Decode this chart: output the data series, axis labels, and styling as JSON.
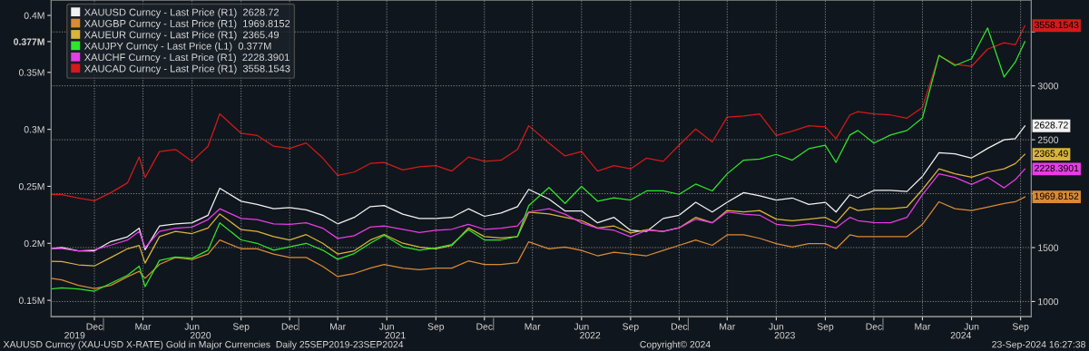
{
  "chart_data": {
    "type": "line",
    "x": [
      "2019-09-25",
      "2019-10-15",
      "2019-11-15",
      "2019-12-15",
      "2020-01-15",
      "2020-02-15",
      "2020-03-08",
      "2020-03-19",
      "2020-04-15",
      "2020-05-15",
      "2020-06-15",
      "2020-07-15",
      "2020-08-06",
      "2020-09-15",
      "2020-10-15",
      "2020-11-15",
      "2020-12-15",
      "2021-01-15",
      "2021-02-15",
      "2021-03-15",
      "2021-04-15",
      "2021-05-15",
      "2021-06-10",
      "2021-07-15",
      "2021-08-15",
      "2021-09-15",
      "2021-10-15",
      "2021-11-15",
      "2021-12-15",
      "2022-01-15",
      "2022-02-15",
      "2022-03-08",
      "2022-04-15",
      "2022-05-15",
      "2022-06-15",
      "2022-07-15",
      "2022-08-15",
      "2022-09-15",
      "2022-10-15",
      "2022-11-15",
      "2022-12-15",
      "2023-01-15",
      "2023-02-15",
      "2023-03-15",
      "2023-04-15",
      "2023-05-15",
      "2023-06-15",
      "2023-07-15",
      "2023-08-15",
      "2023-09-15",
      "2023-10-05",
      "2023-10-31",
      "2023-11-15",
      "2023-12-15",
      "2024-01-15",
      "2024-02-15",
      "2024-03-15",
      "2024-04-15",
      "2024-05-15",
      "2024-06-15",
      "2024-07-15",
      "2024-08-15",
      "2024-09-05",
      "2024-09-23"
    ],
    "series": [
      {
        "name": "XAUUSD Curncy - Last Price (R1)  2628.72",
        "color": "#f2f2f2",
        "axis": "y2",
        "values": [
          1490,
          1500,
          1470,
          1470,
          1556,
          1600,
          1680,
          1480,
          1700,
          1720,
          1730,
          1800,
          2050,
          1930,
          1900,
          1860,
          1870,
          1850,
          1800,
          1720,
          1780,
          1880,
          1890,
          1810,
          1770,
          1770,
          1780,
          1860,
          1790,
          1820,
          1880,
          2040,
          1950,
          1840,
          1840,
          1730,
          1780,
          1660,
          1650,
          1770,
          1800,
          1920,
          1830,
          1920,
          2010,
          1980,
          1940,
          1960,
          1900,
          1920,
          1830,
          1990,
          1960,
          2030,
          2030,
          2020,
          2160,
          2380,
          2370,
          2330,
          2420,
          2500,
          2510,
          2628.72
        ],
        "value_labels": [
          null,
          null,
          null,
          null,
          null,
          null,
          null,
          null,
          null,
          null,
          null,
          null,
          null,
          null,
          null,
          null,
          null,
          null,
          null,
          null,
          null,
          null,
          null,
          null,
          null,
          null,
          null,
          null,
          null,
          null,
          null,
          null,
          null,
          null,
          null,
          null,
          null,
          null,
          null,
          null,
          null,
          null,
          null,
          null,
          null,
          null,
          null,
          null,
          null,
          null,
          null,
          null,
          null,
          null,
          null,
          null,
          null,
          null,
          null,
          null,
          null,
          null,
          null,
          "2628.72"
        ]
      },
      {
        "name": "XAUGBP Curncy - Last Price (R1)  1969.8152",
        "color": "#d98a35",
        "axis": "y2",
        "values": [
          1215,
          1200,
          1150,
          1120,
          1150,
          1230,
          1280,
          1215,
          1344,
          1408,
          1390,
          1440,
          1570,
          1489,
          1489,
          1440,
          1408,
          1408,
          1325,
          1231,
          1260,
          1310,
          1344,
          1310,
          1295,
          1310,
          1310,
          1376,
          1344,
          1344,
          1360,
          1554,
          1489,
          1505,
          1473,
          1424,
          1456,
          1440,
          1424,
          1473,
          1521,
          1570,
          1521,
          1618,
          1618,
          1586,
          1537,
          1505,
          1537,
          1537,
          1489,
          1618,
          1602,
          1602,
          1602,
          1602,
          1716,
          1925,
          1860,
          1844,
          1876,
          1909,
          1925,
          1969.8152
        ],
        "value_labels": [
          null,
          null,
          null,
          null,
          null,
          null,
          null,
          null,
          null,
          null,
          null,
          null,
          null,
          null,
          null,
          null,
          null,
          null,
          null,
          null,
          null,
          null,
          null,
          null,
          null,
          null,
          null,
          null,
          null,
          null,
          null,
          null,
          null,
          null,
          null,
          null,
          null,
          null,
          null,
          null,
          null,
          null,
          null,
          null,
          null,
          null,
          null,
          null,
          null,
          null,
          null,
          null,
          null,
          null,
          null,
          null,
          null,
          null,
          null,
          null,
          null,
          null,
          null,
          "1969.8152"
        ]
      },
      {
        "name": "XAUEUR Curncy - Last Price (R1)  2365.49",
        "color": "#d9b43c",
        "axis": "y2",
        "values": [
          1372,
          1370,
          1340,
          1330,
          1408,
          1489,
          1520,
          1356,
          1602,
          1650,
          1630,
          1682,
          1812,
          1666,
          1650,
          1602,
          1570,
          1620,
          1540,
          1440,
          1470,
          1570,
          1622,
          1540,
          1505,
          1489,
          1520,
          1682,
          1602,
          1590,
          1602,
          1828,
          1812,
          1780,
          1750,
          1682,
          1700,
          1635,
          1666,
          1650,
          1683,
          1780,
          1730,
          1844,
          1830,
          1844,
          1764,
          1748,
          1764,
          1780,
          1730,
          1876,
          1844,
          1860,
          1860,
          1876,
          2038,
          2231,
          2185,
          2153,
          2200,
          2231,
          2279,
          2365.49
        ],
        "value_labels": [
          null,
          null,
          null,
          null,
          null,
          null,
          null,
          null,
          null,
          null,
          null,
          null,
          null,
          null,
          null,
          null,
          null,
          null,
          null,
          null,
          null,
          null,
          null,
          null,
          null,
          null,
          null,
          null,
          null,
          null,
          null,
          null,
          null,
          null,
          null,
          null,
          null,
          null,
          null,
          null,
          null,
          null,
          null,
          null,
          null,
          null,
          null,
          null,
          null,
          null,
          null,
          null,
          null,
          null,
          null,
          null,
          null,
          null,
          null,
          null,
          null,
          null,
          null,
          "2365.49"
        ]
      },
      {
        "name": "XAUJPY Curncy - Last Price (L1)  0.377M",
        "color": "#2ee62e",
        "axis": "y",
        "values": [
          0.16,
          0.161,
          0.16,
          0.158,
          0.165,
          0.172,
          0.18,
          0.162,
          0.185,
          0.188,
          0.187,
          0.194,
          0.218,
          0.203,
          0.2,
          0.194,
          0.197,
          0.2,
          0.194,
          0.186,
          0.191,
          0.2,
          0.207,
          0.197,
          0.194,
          0.196,
          0.199,
          0.212,
          0.203,
          0.203,
          0.206,
          0.233,
          0.249,
          0.235,
          0.25,
          0.237,
          0.24,
          0.238,
          0.246,
          0.246,
          0.243,
          0.252,
          0.246,
          0.261,
          0.273,
          0.274,
          0.278,
          0.273,
          0.283,
          0.286,
          0.271,
          0.295,
          0.299,
          0.288,
          0.295,
          0.299,
          0.31,
          0.365,
          0.356,
          0.362,
          0.389,
          0.346,
          0.359,
          0.377
        ]
      },
      {
        "name": "XAUCHF Curncy - Last Price (R1)  2228.3901",
        "color": "#e83ce8",
        "axis": "y2",
        "values": [
          1490,
          1490,
          1470,
          1480,
          1523,
          1570,
          1650,
          1500,
          1650,
          1680,
          1690,
          1760,
          1860,
          1770,
          1760,
          1720,
          1716,
          1730,
          1680,
          1585,
          1610,
          1690,
          1700,
          1670,
          1640,
          1660,
          1670,
          1716,
          1670,
          1680,
          1700,
          1830,
          1860,
          1810,
          1730,
          1680,
          1660,
          1600,
          1660,
          1650,
          1683,
          1763,
          1730,
          1830,
          1810,
          1800,
          1716,
          1700,
          1720,
          1700,
          1683,
          1780,
          1750,
          1732,
          1730,
          1780,
          1990,
          2185,
          2150,
          2086,
          2153,
          2054,
          2130,
          2228.3901
        ],
        "value_labels": [
          null,
          null,
          null,
          null,
          null,
          null,
          null,
          null,
          null,
          null,
          null,
          null,
          null,
          null,
          null,
          null,
          null,
          null,
          null,
          null,
          null,
          null,
          null,
          null,
          null,
          null,
          null,
          null,
          null,
          null,
          null,
          null,
          null,
          null,
          null,
          null,
          null,
          null,
          null,
          null,
          null,
          null,
          null,
          null,
          null,
          null,
          null,
          null,
          null,
          null,
          null,
          null,
          null,
          null,
          null,
          null,
          null,
          null,
          null,
          null,
          null,
          null,
          null,
          "2228.3901"
        ]
      },
      {
        "name": "XAUCAD Curncy - Last Price (R1)  3558.1543",
        "color": "#d41a1a",
        "axis": "y2",
        "values": [
          1990,
          1990,
          1960,
          1934,
          2010,
          2100,
          2340,
          2150,
          2390,
          2410,
          2300,
          2440,
          2740,
          2560,
          2540,
          2440,
          2420,
          2470,
          2330,
          2170,
          2200,
          2280,
          2290,
          2220,
          2250,
          2260,
          2210,
          2340,
          2300,
          2310,
          2410,
          2630,
          2470,
          2350,
          2390,
          2210,
          2260,
          2230,
          2330,
          2300,
          2450,
          2600,
          2480,
          2710,
          2720,
          2740,
          2540,
          2580,
          2630,
          2620,
          2510,
          2730,
          2760,
          2740,
          2730,
          2700,
          2800,
          3280,
          3200,
          3180,
          3340,
          3400,
          3380,
          3558.1543
        ],
        "value_labels": [
          null,
          null,
          null,
          null,
          null,
          null,
          null,
          null,
          null,
          null,
          null,
          null,
          null,
          null,
          null,
          null,
          null,
          null,
          null,
          null,
          null,
          null,
          null,
          null,
          null,
          null,
          null,
          null,
          null,
          null,
          null,
          null,
          null,
          null,
          null,
          null,
          null,
          null,
          null,
          null,
          null,
          null,
          null,
          null,
          null,
          null,
          null,
          null,
          null,
          null,
          null,
          null,
          null,
          null,
          null,
          null,
          null,
          null,
          null,
          null,
          null,
          null,
          null,
          "3558.1543"
        ]
      }
    ],
    "xlim": [
      "2019-09-25",
      "2024-10-05"
    ],
    "x2lim": [
      "2019-09-25",
      "2024-10-05"
    ],
    "xticks": [
      {
        "value": "2019-12-15",
        "label": "Dec"
      },
      {
        "value": "2020-03-15",
        "label": "Mar"
      },
      {
        "value": "2020-06-15",
        "label": "Jun"
      },
      {
        "value": "2020-09-15",
        "label": "Sep"
      },
      {
        "value": "2020-12-15",
        "label": "Dec"
      },
      {
        "value": "2021-03-15",
        "label": "Mar"
      },
      {
        "value": "2021-06-15",
        "label": "Jun"
      },
      {
        "value": "2021-09-15",
        "label": "Sep"
      },
      {
        "value": "2021-12-15",
        "label": "Dec"
      },
      {
        "value": "2022-03-15",
        "label": "Mar"
      },
      {
        "value": "2022-06-15",
        "label": "Jun"
      },
      {
        "value": "2022-09-15",
        "label": "Sep"
      },
      {
        "value": "2022-12-15",
        "label": "Dec"
      },
      {
        "value": "2023-03-15",
        "label": "Mar"
      },
      {
        "value": "2023-06-15",
        "label": "Jun"
      },
      {
        "value": "2023-09-15",
        "label": "Sep"
      },
      {
        "value": "2023-12-15",
        "label": "Dec"
      },
      {
        "value": "2024-03-15",
        "label": "Mar"
      },
      {
        "value": "2024-06-15",
        "label": "Jun"
      },
      {
        "value": "2024-09-15",
        "label": "Sep"
      }
    ],
    "x2ticks": [
      {
        "value": "2019-11-08",
        "label": "2019"
      },
      {
        "value": "2020-01-01",
        "label": null
      },
      {
        "value": "2020-07-01",
        "label": "2020"
      },
      {
        "value": "2021-01-01",
        "label": null
      },
      {
        "value": "2021-07-01",
        "label": "2021"
      },
      {
        "value": "2022-01-01",
        "label": null
      },
      {
        "value": "2022-07-01",
        "label": "2022"
      },
      {
        "value": "2023-01-01",
        "label": null
      },
      {
        "value": "2023-07-01",
        "label": "2023"
      },
      {
        "value": "2024-01-01",
        "label": null
      },
      {
        "value": "2024-05-26",
        "label": "2024"
      }
    ],
    "ylim": [
      0.1357,
      0.4135
    ],
    "yticks": [
      {
        "value": 0.15,
        "label": "0.15M"
      },
      {
        "value": 0.2,
        "label": "0.2M"
      },
      {
        "value": 0.25,
        "label": "0.25M"
      },
      {
        "value": 0.3,
        "label": "0.3M"
      },
      {
        "value": 0.35,
        "label": "0.35M"
      },
      {
        "value": 0.377,
        "label": "0.377M"
      },
      {
        "value": 0.4,
        "label": "0.4M"
      }
    ],
    "y2lim": [
      860,
      3796
    ],
    "y2ticks": [
      1000,
      1500,
      {
        "value": 2000,
        "label": null
      },
      2500,
      3000,
      {
        "value": 3500,
        "label": null
      }
    ],
    "grid": true,
    "legend": "top left",
    "annotations": [
      "XAUUSD Curncy (XAU-USD X-RATE) Gold in Major Currencies  Daily 25SEP2019-23SEP2024",
      "Copyright© 2024",
      "23-Sep-2024 16:27:38"
    ]
  }
}
